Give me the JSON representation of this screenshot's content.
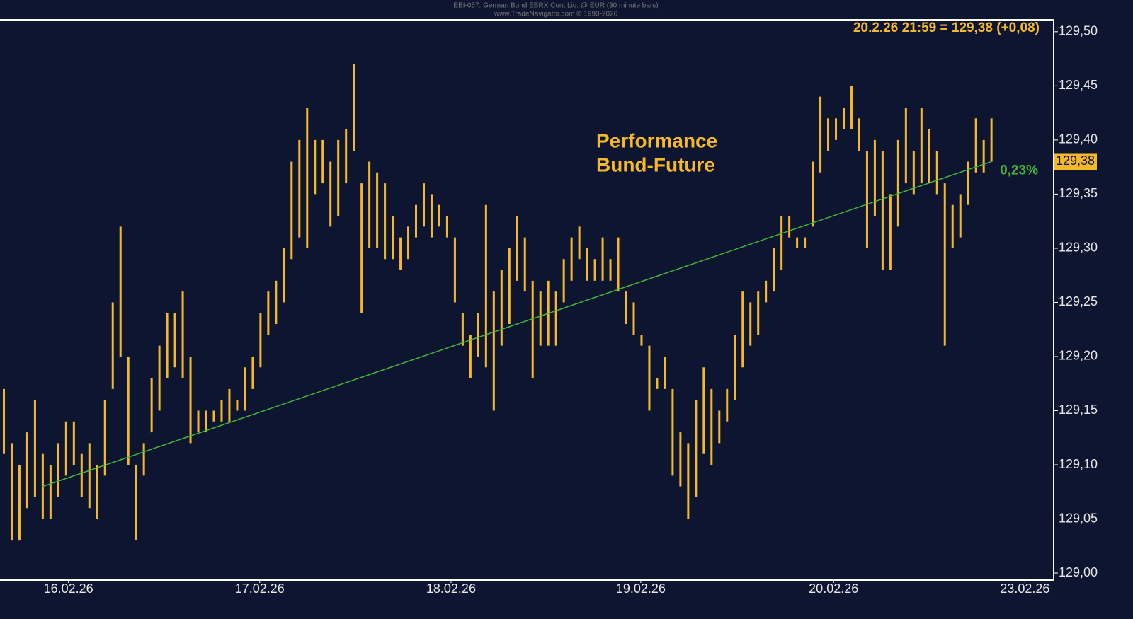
{
  "chart_data": {
    "type": "ohlc",
    "header": [
      "EBI-057: German Bund EBRX Cont Liq. @ EUR (30 minute bars)",
      "www.TradeNavigator.com © 1990-2026"
    ],
    "quote": "20.2.26 21:59 = 129,38 (+0,08)",
    "annotation": [
      "Performance",
      "Bund-Future"
    ],
    "xlim": [
      -0.5,
      135
    ],
    "ylim": [
      128.9935,
      129.511
    ],
    "xticks": [
      {
        "value": 8.3,
        "label": "16.02.26"
      },
      {
        "value": 32.9,
        "label": "17.02.26"
      },
      {
        "value": 57.5,
        "label": "18.02.26"
      },
      {
        "value": 81.9,
        "label": "19.02.26"
      },
      {
        "value": 106.7,
        "label": "20.02.26"
      },
      {
        "value": 131.3,
        "label": "23.02.26"
      }
    ],
    "yticks": [
      {
        "value": 129.0,
        "label": "129,00"
      },
      {
        "value": 129.05,
        "label": "129,05"
      },
      {
        "value": 129.1,
        "label": "129,10"
      },
      {
        "value": 129.15,
        "label": "129,15"
      },
      {
        "value": 129.2,
        "label": "129,20"
      },
      {
        "value": 129.25,
        "label": "129,25"
      },
      {
        "value": 129.3,
        "label": "129,30"
      },
      {
        "value": 129.35,
        "label": "129,35"
      },
      {
        "value": 129.4,
        "label": "129,40"
      },
      {
        "value": 129.45,
        "label": "129,45"
      },
      {
        "value": 129.5,
        "label": "129,50"
      }
    ],
    "last_price": {
      "value": 129.38,
      "label": "129,38"
    },
    "trendline": {
      "x": [
        5,
        127
      ],
      "y": [
        129.08,
        129.38
      ],
      "color": "#3fb83a",
      "label": "0,23%"
    },
    "series": [
      {
        "color": "#f5b82a",
        "high": [
          129.17,
          129.12,
          129.1,
          129.13,
          129.16,
          129.11,
          129.1,
          129.12,
          129.14,
          129.14,
          129.11,
          129.12,
          129.1,
          129.16,
          129.25,
          129.32,
          129.2,
          129.1,
          129.12,
          129.18,
          129.21,
          129.24,
          129.24,
          129.26,
          129.2,
          129.15,
          129.15,
          129.15,
          129.16,
          129.17,
          129.16,
          129.19,
          129.2,
          129.24,
          129.26,
          129.27,
          129.3,
          129.38,
          129.4,
          129.43,
          129.4,
          129.4,
          129.38,
          129.4,
          129.41,
          129.47,
          129.36,
          129.38,
          129.37,
          129.36,
          129.33,
          129.31,
          129.32,
          129.34,
          129.36,
          129.35,
          129.34,
          129.33,
          129.31,
          129.24,
          129.22,
          129.24,
          129.34,
          129.26,
          129.28,
          129.3,
          129.33,
          129.31,
          129.27,
          129.26,
          129.27,
          129.26,
          129.29,
          129.31,
          129.32,
          129.3,
          129.29,
          129.31,
          129.29,
          129.31,
          129.26,
          129.25,
          129.22,
          129.21,
          129.18,
          129.2,
          129.17,
          129.13,
          129.12,
          129.16,
          129.19,
          129.17,
          129.15,
          129.17,
          129.22,
          129.26,
          129.25,
          129.26,
          129.27,
          129.3,
          129.33,
          129.33,
          129.31,
          129.31,
          129.38,
          129.44,
          129.42,
          129.42,
          129.43,
          129.45,
          129.42,
          129.39,
          129.4,
          129.39,
          129.35,
          129.4,
          129.43,
          129.39,
          129.43,
          129.41,
          129.39,
          129.36,
          129.34,
          129.35,
          129.38,
          129.42,
          129.4,
          129.42
        ],
        "low": [
          129.11,
          129.03,
          129.03,
          129.06,
          129.07,
          129.05,
          129.05,
          129.07,
          129.09,
          129.1,
          129.07,
          129.06,
          129.05,
          129.09,
          129.17,
          129.2,
          129.1,
          129.03,
          129.09,
          129.13,
          129.15,
          129.18,
          129.19,
          129.18,
          129.12,
          129.13,
          129.13,
          129.14,
          129.14,
          129.14,
          129.15,
          129.15,
          129.17,
          129.19,
          129.22,
          129.23,
          129.25,
          129.29,
          129.31,
          129.3,
          129.35,
          129.36,
          129.32,
          129.33,
          129.36,
          129.39,
          129.24,
          129.3,
          129.3,
          129.29,
          129.29,
          129.28,
          129.29,
          129.31,
          129.32,
          129.31,
          129.32,
          129.31,
          129.25,
          129.21,
          129.18,
          129.2,
          129.19,
          129.15,
          129.21,
          129.23,
          129.27,
          129.26,
          129.18,
          129.21,
          129.21,
          129.21,
          129.25,
          129.27,
          129.29,
          129.27,
          129.27,
          129.27,
          129.27,
          129.26,
          129.23,
          129.22,
          129.21,
          129.15,
          129.17,
          129.17,
          129.09,
          129.08,
          129.05,
          129.07,
          129.11,
          129.1,
          129.12,
          129.14,
          129.16,
          129.19,
          129.21,
          129.22,
          129.25,
          129.26,
          129.28,
          129.31,
          129.3,
          129.3,
          129.32,
          129.37,
          129.39,
          129.4,
          129.41,
          129.41,
          129.39,
          129.3,
          129.33,
          129.28,
          129.28,
          129.32,
          129.36,
          129.35,
          129.36,
          129.36,
          129.35,
          129.21,
          129.3,
          129.31,
          129.34,
          129.37,
          129.37,
          129.38
        ]
      }
    ]
  }
}
